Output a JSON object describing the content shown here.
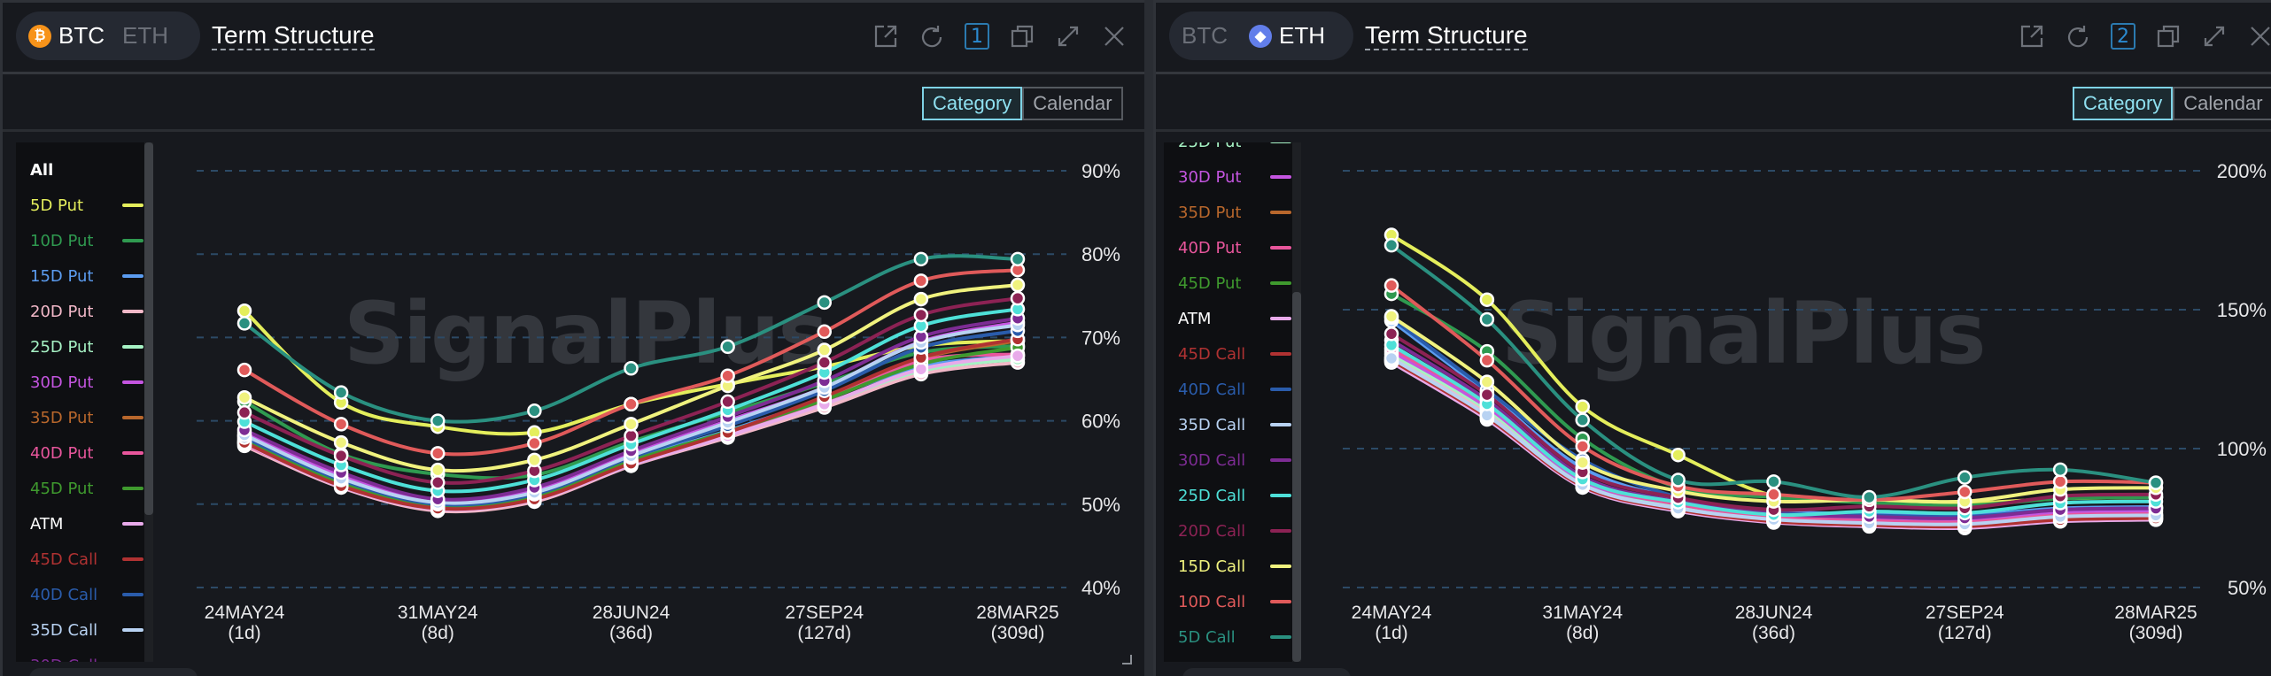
{
  "colors": {
    "accent": "#7fd3e6",
    "btc": "#f7931a",
    "eth": "#627eea",
    "badge": "#2b8ad0"
  },
  "panels": [
    {
      "coins": [
        {
          "label": "BTC",
          "active": true
        },
        {
          "label": "ETH",
          "active": false
        }
      ],
      "title": "Term Structure",
      "window_number": "1",
      "toolbar_icons": [
        "external-link-icon",
        "refresh-icon",
        "copy-icon",
        "expand-icon",
        "close-icon"
      ],
      "view_toggle": {
        "options": [
          "Category",
          "Calendar"
        ],
        "selected": "Category"
      },
      "watermark": "SignalPlus"
    },
    {
      "coins": [
        {
          "label": "BTC",
          "active": false
        },
        {
          "label": "ETH",
          "active": true
        }
      ],
      "title": "Term Structure",
      "window_number": "2",
      "toolbar_icons": [
        "external-link-icon",
        "refresh-icon",
        "copy-icon",
        "expand-icon",
        "close-icon"
      ],
      "view_toggle": {
        "options": [
          "Category",
          "Calendar"
        ],
        "selected": "Category"
      },
      "watermark": "SignalPlus"
    }
  ],
  "legend": {
    "all_label": "All",
    "items": [
      {
        "label": "5D Put",
        "color": "#e4ee5c"
      },
      {
        "label": "10D Put",
        "color": "#2f9a50"
      },
      {
        "label": "15D Put",
        "color": "#5b9cf0"
      },
      {
        "label": "20D Put",
        "color": "#f2b8c8"
      },
      {
        "label": "25D Put",
        "color": "#a6f2c4"
      },
      {
        "label": "30D Put",
        "color": "#c455e0"
      },
      {
        "label": "35D Put",
        "color": "#b8672c"
      },
      {
        "label": "40D Put",
        "color": "#e8569c"
      },
      {
        "label": "45D Put",
        "color": "#3f9a2e"
      },
      {
        "label": "ATM",
        "color": "#e8aaea"
      },
      {
        "label": "45D Call",
        "color": "#b03232"
      },
      {
        "label": "40D Call",
        "color": "#2a5cab"
      },
      {
        "label": "35D Call",
        "color": "#b8d2f2"
      },
      {
        "label": "30D Call",
        "color": "#7d2c94"
      },
      {
        "label": "25D Call",
        "color": "#4ee0d8"
      },
      {
        "label": "20D Call",
        "color": "#8c2254"
      },
      {
        "label": "15D Call",
        "color": "#f0f27e"
      },
      {
        "label": "10D Call",
        "color": "#e05a5a"
      },
      {
        "label": "5D Call",
        "color": "#2a9080"
      }
    ]
  },
  "chart_data": [
    {
      "type": "line",
      "asset": "BTC",
      "x_tick_labels": [
        [
          "24MAY24",
          "(1d)"
        ],
        [
          "31MAY24",
          "(8d)"
        ],
        [
          "28JUN24",
          "(36d)"
        ],
        [
          "27SEP24",
          "(127d)"
        ],
        [
          "28MAR25",
          "(309d)"
        ]
      ],
      "point_count": 9,
      "y_ticks": [
        "90%",
        "80%",
        "70%",
        "60%",
        "50%",
        "40%"
      ],
      "ylim": [
        40,
        90
      ],
      "grid": true,
      "legend_placement": "left",
      "series": [
        {
          "name": "5D Put",
          "values": [
            73.2,
            62.2,
            59.3,
            58.6,
            62.0,
            64.4,
            66.5,
            69.0,
            69.6
          ]
        },
        {
          "name": "10D Put",
          "values": [
            62.3,
            56.0,
            53.6,
            53.5,
            57.5,
            61.0,
            64.5,
            68.2,
            69.0
          ]
        },
        {
          "name": "15D Put",
          "values": [
            58.2,
            52.8,
            50.0,
            51.0,
            55.3,
            58.8,
            62.6,
            66.5,
            67.8
          ]
        },
        {
          "name": "20D Put",
          "values": [
            57.0,
            52.0,
            49.2,
            50.3,
            54.6,
            58.0,
            61.6,
            65.6,
            67.0
          ]
        },
        {
          "name": "25D Put",
          "values": [
            57.5,
            52.3,
            49.5,
            50.6,
            54.9,
            58.3,
            62.0,
            66.0,
            67.4
          ]
        },
        {
          "name": "30D Put",
          "values": [
            58.6,
            53.4,
            50.3,
            51.6,
            56.0,
            60.0,
            64.0,
            69.5,
            71.8
          ]
        },
        {
          "name": "35D Put",
          "values": [
            57.6,
            52.4,
            49.6,
            50.8,
            55.0,
            58.5,
            62.8,
            67.5,
            69.6
          ]
        },
        {
          "name": "40D Put",
          "values": [
            57.2,
            52.2,
            49.4,
            50.6,
            54.8,
            58.3,
            62.4,
            67.2,
            68.0
          ]
        },
        {
          "name": "45D Put",
          "values": [
            57.8,
            52.6,
            49.8,
            51.0,
            55.2,
            58.7,
            62.5,
            66.8,
            68.8
          ]
        },
        {
          "name": "ATM",
          "values": [
            57.3,
            52.1,
            49.4,
            50.5,
            54.7,
            58.2,
            62.0,
            66.2,
            67.8
          ]
        },
        {
          "name": "45D Call",
          "values": [
            57.4,
            52.2,
            49.5,
            50.6,
            54.9,
            58.6,
            62.9,
            67.6,
            69.8
          ]
        },
        {
          "name": "40D Call",
          "values": [
            58.0,
            52.9,
            50.0,
            51.2,
            55.6,
            59.4,
            63.6,
            68.8,
            70.8
          ]
        },
        {
          "name": "35D Call",
          "values": [
            58.3,
            53.1,
            50.2,
            51.4,
            55.8,
            59.8,
            64.0,
            69.4,
            71.5
          ]
        },
        {
          "name": "30D Call",
          "values": [
            58.9,
            53.8,
            50.6,
            52.0,
            56.4,
            60.5,
            64.8,
            70.1,
            72.3
          ]
        },
        {
          "name": "25D Call",
          "values": [
            59.9,
            54.7,
            51.6,
            52.9,
            57.2,
            61.3,
            65.8,
            71.4,
            73.4
          ]
        },
        {
          "name": "20D Call",
          "values": [
            61.0,
            55.8,
            52.6,
            54.0,
            58.2,
            62.3,
            67.0,
            72.7,
            74.7
          ]
        },
        {
          "name": "15D Call",
          "values": [
            62.8,
            57.4,
            54.1,
            55.3,
            59.6,
            64.2,
            68.5,
            74.6,
            76.3
          ]
        },
        {
          "name": "10D Call",
          "values": [
            66.1,
            59.6,
            56.1,
            57.3,
            62.0,
            65.4,
            70.7,
            76.8,
            78.1
          ]
        },
        {
          "name": "5D Call",
          "values": [
            71.7,
            63.4,
            60.0,
            61.2,
            66.3,
            68.9,
            74.2,
            79.4,
            79.4
          ]
        }
      ]
    },
    {
      "type": "line",
      "asset": "ETH",
      "x_tick_labels": [
        [
          "24MAY24",
          "(1d)"
        ],
        [
          "31MAY24",
          "(8d)"
        ],
        [
          "28JUN24",
          "(36d)"
        ],
        [
          "27SEP24",
          "(127d)"
        ],
        [
          "28MAR25",
          "(309d)"
        ]
      ],
      "point_count": 9,
      "y_ticks": [
        "200%",
        "150%",
        "100%",
        "50%"
      ],
      "ylim": [
        50,
        200
      ],
      "grid": true,
      "legend_placement": "left",
      "series": [
        {
          "name": "5D Put",
          "values": [
            176.9,
            153.6,
            115.1,
            97.7,
            83.0,
            81.6,
            80.4,
            82.0,
            82.5
          ]
        },
        {
          "name": "10D Put",
          "values": [
            155.7,
            135.0,
            103.6,
            86.0,
            82.5,
            80.5,
            79.5,
            82.0,
            82.5
          ]
        },
        {
          "name": "15D Put",
          "values": [
            146.0,
            120.0,
            93.0,
            82.0,
            77.5,
            76.5,
            76.0,
            78.5,
            79.0
          ]
        },
        {
          "name": "20D Put",
          "values": [
            133.0,
            113.0,
            87.5,
            79.0,
            74.5,
            73.0,
            72.5,
            75.0,
            75.5
          ]
        },
        {
          "name": "25D Put",
          "values": [
            134.0,
            114.0,
            88.0,
            79.5,
            75.0,
            73.5,
            73.0,
            75.5,
            76.0
          ]
        },
        {
          "name": "30D Put",
          "values": [
            135.0,
            115.0,
            88.5,
            80.0,
            75.5,
            74.5,
            74.0,
            77.0,
            77.5
          ]
        },
        {
          "name": "35D Put",
          "values": [
            132.0,
            111.5,
            86.5,
            78.0,
            73.8,
            72.5,
            72.0,
            74.5,
            75.0
          ]
        },
        {
          "name": "40D Put",
          "values": [
            136.0,
            116.0,
            89.0,
            80.0,
            75.5,
            74.0,
            73.5,
            76.0,
            76.5
          ]
        },
        {
          "name": "45D Put",
          "values": [
            131.5,
            111.0,
            86.2,
            77.8,
            73.6,
            72.2,
            71.6,
            74.0,
            74.6
          ]
        },
        {
          "name": "ATM",
          "values": [
            131.0,
            110.5,
            86.0,
            77.5,
            73.4,
            72.0,
            71.4,
            73.8,
            74.4
          ]
        },
        {
          "name": "45D Call",
          "values": [
            131.8,
            111.3,
            86.5,
            78.0,
            73.8,
            72.5,
            72.0,
            74.4,
            75.0
          ]
        },
        {
          "name": "40D Call",
          "values": [
            147.0,
            121.0,
            96.0,
            82.5,
            77.0,
            76.0,
            75.5,
            78.0,
            78.5
          ]
        },
        {
          "name": "35D Call",
          "values": [
            132.5,
            112.0,
            87.0,
            78.5,
            74.5,
            73.2,
            72.8,
            75.5,
            76.0
          ]
        },
        {
          "name": "30D Call",
          "values": [
            139.0,
            117.5,
            90.0,
            81.0,
            76.5,
            75.5,
            75.0,
            78.0,
            78.5
          ]
        },
        {
          "name": "25D Call",
          "values": [
            137.3,
            116.1,
            89.0,
            80.7,
            76.2,
            77.4,
            76.8,
            80.4,
            81.0
          ]
        },
        {
          "name": "20D Call",
          "values": [
            141.3,
            119.4,
            91.6,
            82.3,
            78.0,
            79.2,
            78.6,
            82.9,
            83.5
          ]
        },
        {
          "name": "15D Call",
          "values": [
            147.6,
            124.0,
            95.0,
            84.7,
            81.0,
            81.6,
            81.0,
            85.3,
            85.9
          ]
        },
        {
          "name": "10D Call",
          "values": [
            158.7,
            131.8,
            100.8,
            86.5,
            83.5,
            81.6,
            84.4,
            88.1,
            87.7
          ]
        },
        {
          "name": "5D Call",
          "values": [
            173.2,
            146.5,
            110.3,
            88.7,
            88.1,
            82.5,
            89.6,
            92.4,
            87.7
          ]
        }
      ]
    }
  ]
}
